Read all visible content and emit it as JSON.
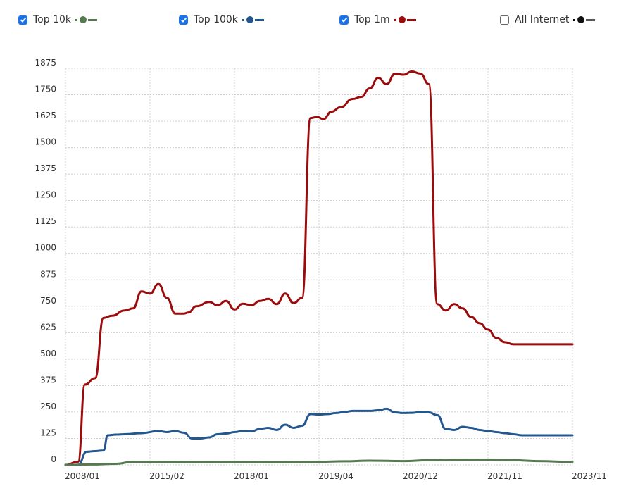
{
  "legend": [
    {
      "label": "Top 10k",
      "checked": true,
      "color": "#557a4f"
    },
    {
      "label": "Top 100k",
      "checked": true,
      "color": "#24578f"
    },
    {
      "label": "Top 1m",
      "checked": true,
      "color": "#9b0b0b"
    },
    {
      "label": "All Internet",
      "checked": false,
      "color": "#111111"
    }
  ],
  "chart_data": {
    "type": "line",
    "title": "",
    "xlabel": "",
    "ylabel": "",
    "ylim": [
      0,
      1875
    ],
    "grid": true,
    "legend_position": "top",
    "y_ticks": [
      "0",
      "125",
      "250",
      "375",
      "500",
      "625",
      "750",
      "875",
      "1000",
      "1125",
      "1250",
      "1375",
      "1500",
      "1625",
      "1750",
      "1875"
    ],
    "x_ticks": [
      "2008/01",
      "2015/02",
      "2018/01",
      "2019/04",
      "2020/12",
      "2021/11",
      "2023/11"
    ],
    "x_index_note": "x position 0..60 spans plot from 2008/01 (0) to 2023/11 (60); ticks every 10 units",
    "series": [
      {
        "name": "Top 10k",
        "color": "#557a4f",
        "x": [
          0,
          3,
          6,
          8,
          10,
          13,
          16,
          20,
          25,
          28,
          30,
          33,
          36,
          40,
          43,
          46,
          50,
          53,
          56,
          60
        ],
        "values": [
          0,
          2,
          5,
          15,
          15,
          14,
          13,
          14,
          12,
          13,
          15,
          17,
          20,
          18,
          22,
          24,
          25,
          22,
          18,
          14
        ]
      },
      {
        "name": "Top 100k",
        "color": "#24578f",
        "x": [
          0,
          1.5,
          2.5,
          3.5,
          4.5,
          5,
          6,
          7,
          9,
          11,
          12,
          13,
          14,
          15,
          16,
          17,
          18,
          19,
          20,
          21,
          22,
          23,
          24,
          25,
          26,
          27,
          28,
          29,
          30,
          31,
          32,
          33,
          34,
          35,
          36,
          37,
          38,
          39,
          40,
          41,
          42,
          43,
          44,
          45,
          46,
          47,
          48,
          49,
          50,
          51,
          52,
          53,
          54,
          55,
          56,
          57,
          58,
          59,
          60
        ],
        "values": [
          0,
          0,
          62,
          65,
          68,
          140,
          143,
          145,
          150,
          160,
          155,
          160,
          152,
          125,
          125,
          130,
          145,
          148,
          155,
          160,
          158,
          170,
          175,
          165,
          190,
          175,
          185,
          240,
          238,
          240,
          245,
          250,
          255,
          255,
          255,
          258,
          265,
          248,
          245,
          246,
          250,
          248,
          235,
          170,
          165,
          180,
          175,
          165,
          160,
          155,
          150,
          145,
          140,
          140,
          140,
          140,
          140,
          140,
          140
        ]
      },
      {
        "name": "Top 1m",
        "color": "#9b0b0b",
        "x": [
          0,
          1.5,
          2.3,
          3.5,
          4.5,
          5.5,
          7,
          8,
          9,
          10,
          11,
          12,
          13,
          14,
          14.5,
          15.5,
          17,
          18,
          19,
          20,
          21,
          22,
          23,
          24,
          25,
          26,
          27,
          28,
          29,
          29.8,
          30.5,
          31.5,
          32.5,
          34,
          35,
          36,
          37,
          38,
          39,
          40,
          41,
          42,
          43,
          44,
          45,
          46,
          47,
          48,
          49,
          50,
          51,
          52,
          53,
          54,
          55,
          56,
          57,
          58,
          59,
          60
        ],
        "values": [
          0,
          15,
          380,
          410,
          695,
          705,
          730,
          740,
          820,
          810,
          855,
          790,
          715,
          715,
          720,
          750,
          770,
          755,
          775,
          735,
          762,
          755,
          775,
          785,
          760,
          810,
          765,
          790,
          1640,
          1645,
          1635,
          1670,
          1690,
          1730,
          1740,
          1780,
          1830,
          1800,
          1850,
          1845,
          1860,
          1850,
          1800,
          760,
          730,
          760,
          740,
          700,
          670,
          640,
          600,
          580,
          570,
          570,
          570,
          570,
          570,
          570,
          570,
          570
        ]
      },
      {
        "name": "All Internet",
        "color": "#111111",
        "visible": false,
        "x": [],
        "values": []
      }
    ]
  }
}
